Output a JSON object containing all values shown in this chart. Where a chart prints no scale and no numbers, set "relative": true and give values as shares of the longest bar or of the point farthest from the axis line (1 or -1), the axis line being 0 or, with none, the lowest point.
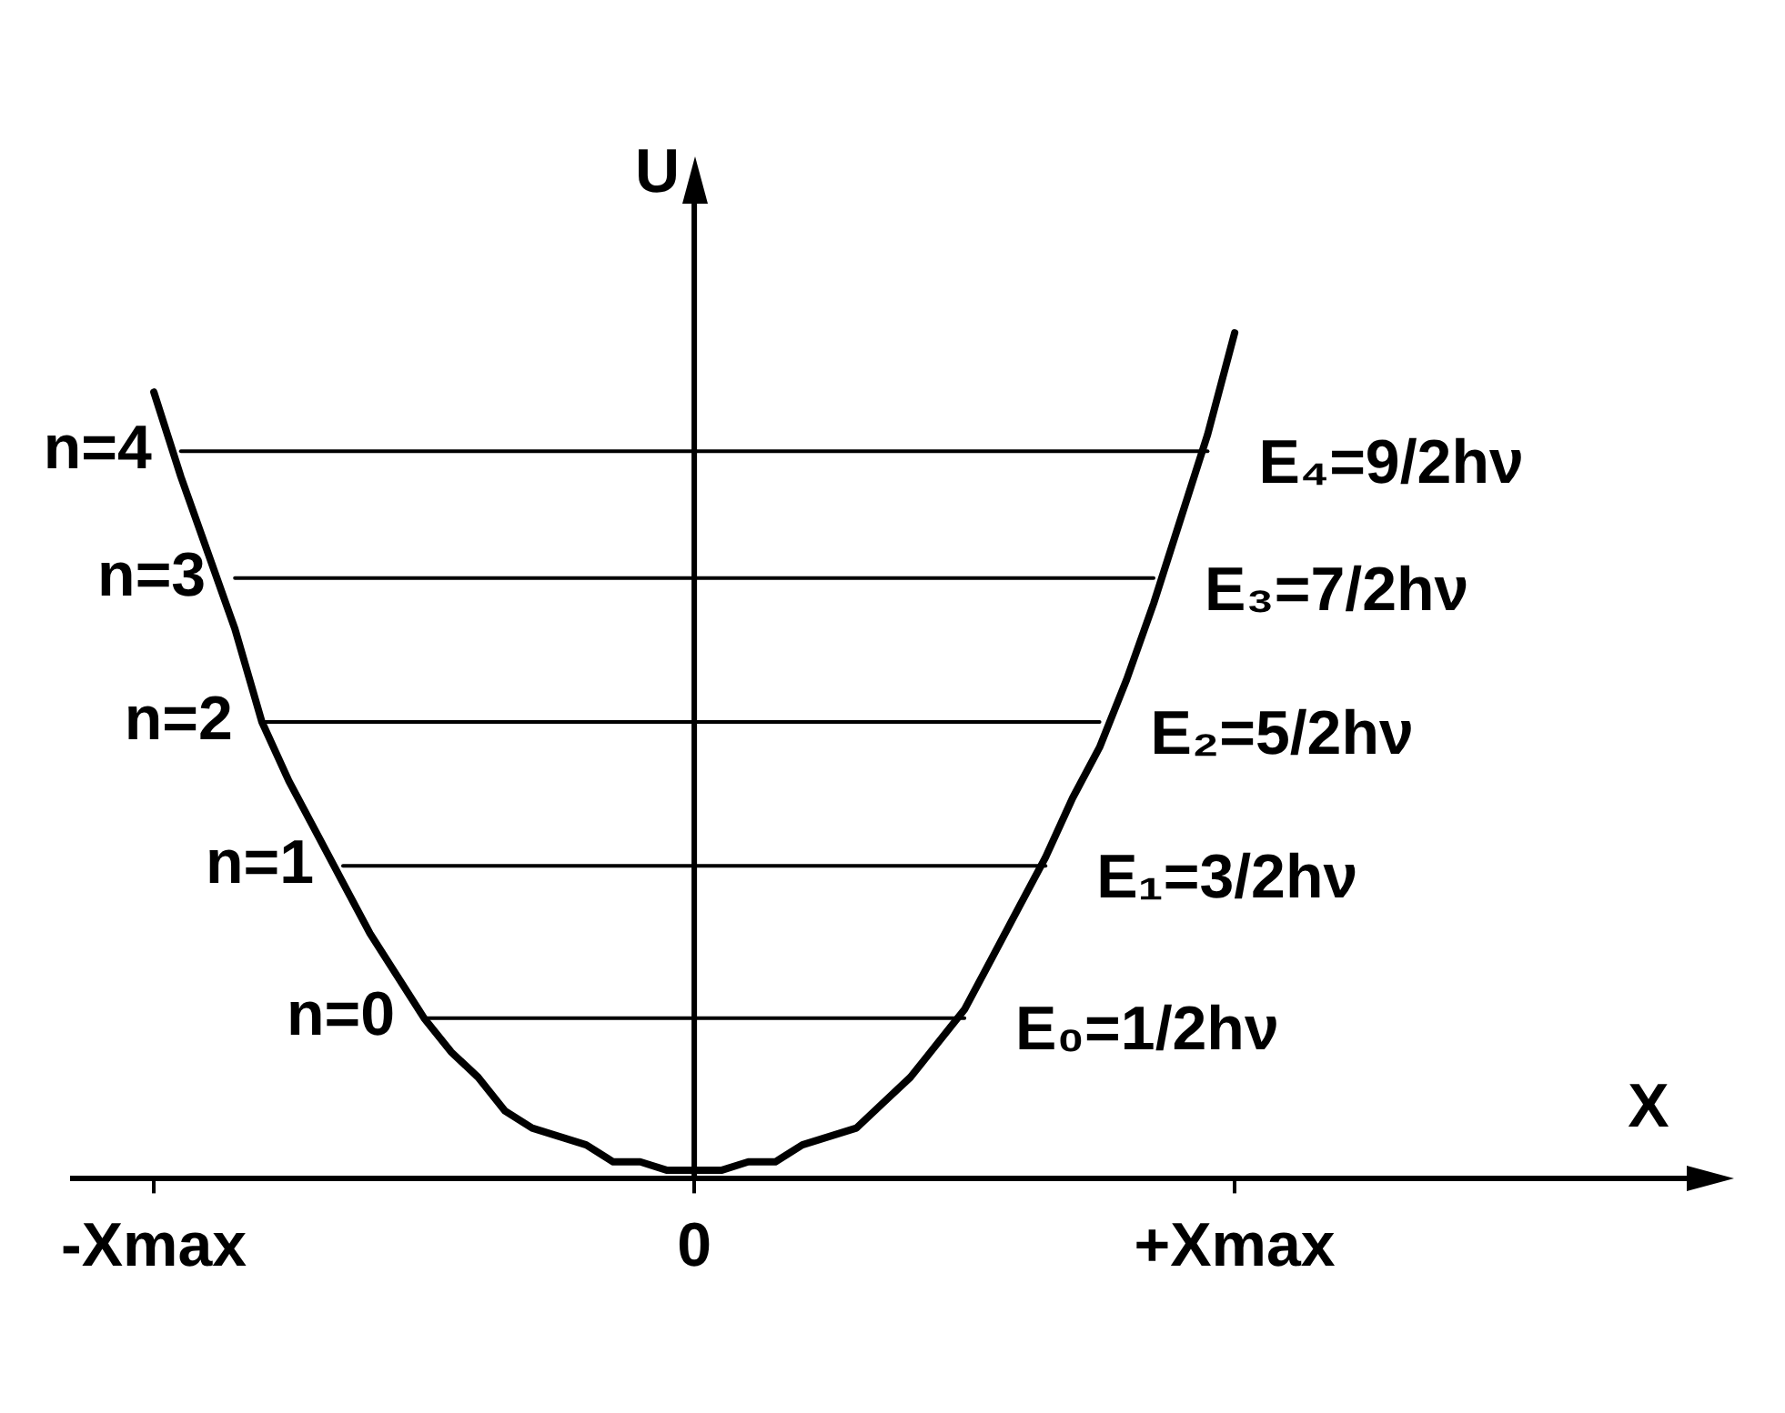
{
  "chart_data": {
    "type": "line",
    "relative": true,
    "xlabel": "X",
    "ylabel": "U",
    "marker": "none",
    "line_style": "solid",
    "tick_labels": "x",
    "categories": [
      null,
      null,
      null,
      "-Xmax",
      null,
      null,
      null,
      null,
      null,
      null,
      null,
      null,
      null,
      null,
      null,
      null,
      null,
      null,
      null,
      null,
      null,
      null,
      null,
      "0",
      null,
      null,
      null,
      null,
      null,
      null,
      null,
      null,
      null,
      null,
      null,
      null,
      null,
      null,
      null,
      null,
      null,
      null,
      null,
      "+Xmax",
      null,
      null,
      null,
      null,
      null,
      null,
      null,
      null,
      null,
      null,
      null,
      null,
      null,
      null,
      null,
      null,
      null
    ],
    "series": [
      {
        "color": "#000000",
        "values": [
          null,
          null,
          null,
          0.93,
          0.83,
          0.74,
          0.65,
          0.54,
          0.47,
          0.41,
          0.35,
          0.29,
          0.24,
          0.19,
          0.15,
          0.12,
          0.08,
          0.06,
          0.05,
          0.04,
          0.02,
          0.02,
          0.01,
          0.01,
          0.01,
          0.02,
          0.02,
          0.04,
          0.05,
          0.06,
          0.09,
          0.12,
          0.16,
          0.2,
          0.26,
          0.32,
          0.38,
          0.45,
          0.51,
          0.59,
          0.68,
          0.78,
          0.88,
          1.0,
          null,
          null,
          null,
          null,
          null,
          null,
          null,
          null,
          null,
          null,
          null,
          null,
          null,
          null,
          null,
          null,
          null
        ]
      },
      {
        "name": "n=4",
        "color": "#000000",
        "values": [
          null,
          null,
          null,
          null,
          0.86,
          null,
          null,
          null,
          null,
          null,
          null,
          null,
          null,
          null,
          null,
          null,
          null,
          null,
          null,
          null,
          null,
          null,
          null,
          null,
          null,
          null,
          null,
          null,
          null,
          null,
          null,
          null,
          null,
          null,
          null,
          null,
          null,
          null,
          null,
          null,
          null,
          null,
          0.86,
          null,
          null,
          null,
          null,
          null,
          null,
          null,
          null,
          null,
          null,
          null,
          null,
          null,
          null,
          null,
          null,
          null,
          null
        ]
      },
      {
        "name": "n=3",
        "color": "#000000",
        "values": [
          null,
          null,
          null,
          null,
          null,
          null,
          0.71,
          null,
          null,
          null,
          null,
          null,
          null,
          null,
          null,
          null,
          null,
          null,
          null,
          null,
          null,
          null,
          null,
          null,
          null,
          null,
          null,
          null,
          null,
          null,
          null,
          null,
          null,
          null,
          null,
          null,
          null,
          null,
          null,
          null,
          0.71,
          null,
          null,
          null,
          null,
          null,
          null,
          null,
          null,
          null,
          null,
          null,
          null,
          null,
          null,
          null,
          null,
          null,
          null,
          null,
          null
        ]
      },
      {
        "name": "n=2",
        "color": "#000000",
        "values": [
          null,
          null,
          null,
          null,
          null,
          null,
          null,
          0.54,
          null,
          null,
          null,
          null,
          null,
          null,
          null,
          null,
          null,
          null,
          null,
          null,
          null,
          null,
          null,
          null,
          null,
          null,
          null,
          null,
          null,
          null,
          null,
          null,
          null,
          null,
          null,
          null,
          null,
          null,
          0.54,
          null,
          null,
          null,
          null,
          null,
          null,
          null,
          null,
          null,
          null,
          null,
          null,
          null,
          null,
          null,
          null,
          null,
          null,
          null,
          null,
          null,
          null
        ]
      },
      {
        "name": "n=1",
        "color": "#000000",
        "values": [
          null,
          null,
          null,
          null,
          null,
          null,
          null,
          null,
          null,
          null,
          0.37,
          null,
          null,
          null,
          null,
          null,
          null,
          null,
          null,
          null,
          null,
          null,
          null,
          null,
          null,
          null,
          null,
          null,
          null,
          null,
          null,
          null,
          null,
          null,
          null,
          null,
          0.37,
          null,
          null,
          null,
          null,
          null,
          null,
          null,
          null,
          null,
          null,
          null,
          null,
          null,
          null,
          null,
          null,
          null,
          null,
          null,
          null,
          null,
          null,
          null,
          null
        ]
      },
      {
        "name": "n=0",
        "color": "#000000",
        "values": [
          null,
          null,
          null,
          null,
          null,
          null,
          null,
          null,
          null,
          null,
          null,
          null,
          null,
          0.19,
          null,
          null,
          null,
          null,
          null,
          null,
          null,
          null,
          null,
          null,
          null,
          null,
          null,
          null,
          null,
          null,
          null,
          null,
          null,
          0.19,
          null,
          null,
          null,
          null,
          null,
          null,
          null,
          null,
          null,
          null,
          null,
          null,
          null,
          null,
          null,
          null,
          null,
          null,
          null,
          null,
          null,
          null,
          null,
          null,
          null,
          null,
          null
        ]
      }
    ],
    "annotations": [
      "E₄=9/2hν",
      "E₃=7/2hν",
      "E₂=5/2hν",
      "E₁=3/2hν",
      "E₀=1/2hν"
    ]
  }
}
